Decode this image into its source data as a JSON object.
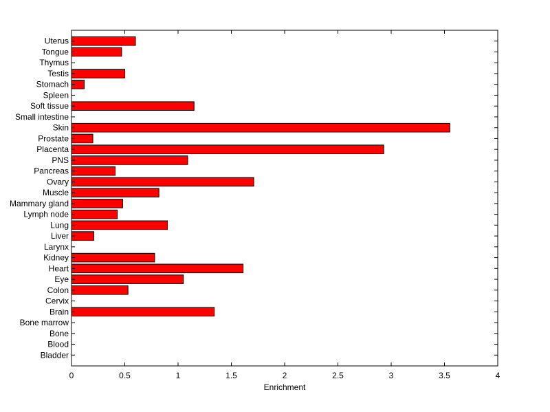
{
  "chart_data": {
    "type": "bar",
    "orientation": "horizontal",
    "title": "",
    "xlabel": "Enrichment",
    "ylabel": "",
    "xlim": [
      0,
      4
    ],
    "xticks": [
      0,
      0.5,
      1,
      1.5,
      2,
      2.5,
      3,
      3.5,
      4
    ],
    "xtick_labels": [
      "0",
      "0.5",
      "1",
      "1.5",
      "2",
      "2.5",
      "3",
      "3.5",
      "4"
    ],
    "grid": false,
    "legend": "none",
    "bar_color": "#ff0000",
    "categories": [
      "Uterus",
      "Tongue",
      "Thymus",
      "Testis",
      "Stomach",
      "Spleen",
      "Soft tissue",
      "Small intestine",
      "Skin",
      "Prostate",
      "Placenta",
      "PNS",
      "Pancreas",
      "Ovary",
      "Muscle",
      "Mammary gland",
      "Lymph node",
      "Lung",
      "Liver",
      "Larynx",
      "Kidney",
      "Heart",
      "Eye",
      "Colon",
      "Cervix",
      "Brain",
      "Bone marrow",
      "Bone",
      "Blood",
      "Bladder"
    ],
    "values": [
      0.6,
      0.47,
      0,
      0.5,
      0.12,
      0,
      1.15,
      0,
      3.55,
      0.2,
      2.93,
      1.09,
      0.41,
      1.71,
      0.82,
      0.48,
      0.43,
      0.9,
      0.21,
      0,
      0.78,
      1.61,
      1.05,
      0.53,
      0,
      1.34,
      0,
      0,
      0,
      0
    ]
  }
}
